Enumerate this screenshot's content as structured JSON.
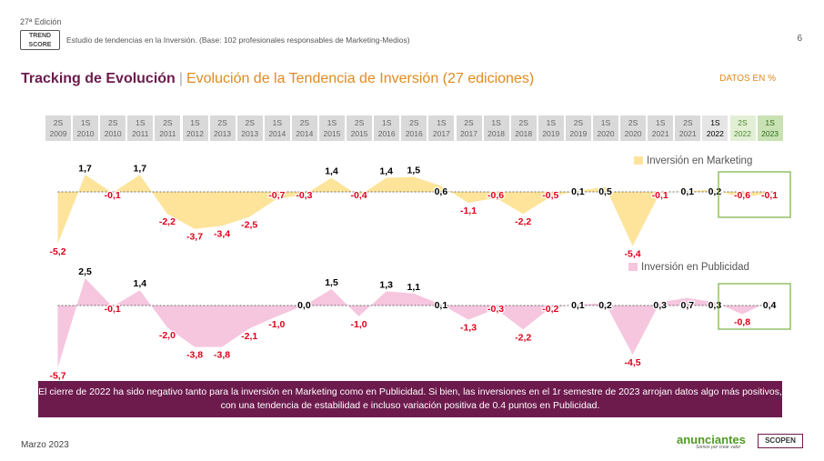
{
  "header": {
    "edition": "27ª Edición",
    "logo_line1": "TREND",
    "logo_line2": "SCORE",
    "study": "Estudio de tendencias en la Inversión. (Base: 102 profesionales responsables de Marketing-Medios)",
    "page_number": "6"
  },
  "title": {
    "main": "Tracking de Evolución",
    "separator": "|",
    "subtitle": "Evolución de la Tendencia de Inversión (27 ediciones)",
    "units": "DATOS EN %"
  },
  "chart_data": {
    "type": "area",
    "periods": [
      {
        "half": "2S",
        "year": "2009"
      },
      {
        "half": "1S",
        "year": "2010"
      },
      {
        "half": "2S",
        "year": "2010"
      },
      {
        "half": "1S",
        "year": "2011"
      },
      {
        "half": "2S",
        "year": "2011"
      },
      {
        "half": "1S",
        "year": "2012"
      },
      {
        "half": "2S",
        "year": "2013"
      },
      {
        "half": "2S",
        "year": "2013"
      },
      {
        "half": "1S",
        "year": "2014"
      },
      {
        "half": "2S",
        "year": "2014"
      },
      {
        "half": "1S",
        "year": "2015"
      },
      {
        "half": "2S",
        "year": "2015"
      },
      {
        "half": "1S",
        "year": "2016"
      },
      {
        "half": "2S",
        "year": "2016"
      },
      {
        "half": "1S",
        "year": "2017"
      },
      {
        "half": "2S",
        "year": "2017"
      },
      {
        "half": "1S",
        "year": "2018"
      },
      {
        "half": "2S",
        "year": "2018"
      },
      {
        "half": "1S",
        "year": "2019"
      },
      {
        "half": "2S",
        "year": "2019"
      },
      {
        "half": "1S",
        "year": "2020"
      },
      {
        "half": "2S",
        "year": "2020"
      },
      {
        "half": "1S",
        "year": "2021"
      },
      {
        "half": "2S",
        "year": "2021"
      },
      {
        "half": "1S",
        "year": "2022"
      },
      {
        "half": "2S",
        "year": "2022"
      },
      {
        "half": "1S",
        "year": "2023"
      }
    ],
    "series": [
      {
        "name": "Inversión en Marketing",
        "color": "#fde49a",
        "values": [
          -5.2,
          1.7,
          -0.1,
          1.7,
          -2.2,
          -3.7,
          -3.4,
          -2.5,
          -0.7,
          -0.3,
          1.4,
          -0.4,
          1.4,
          1.5,
          0.6,
          -1.1,
          -0.6,
          -2.2,
          -0.5,
          0.1,
          0.5,
          -5.4,
          -0.1,
          0.1,
          0.2,
          -0.6,
          -0.1
        ],
        "labels": [
          "-5,2",
          "1,7",
          "-0,1",
          "1,7",
          "-2,2",
          "-3,7",
          "-3,4",
          "-2,5",
          "-0,7",
          "-0,3",
          "1,4",
          "-0,4",
          "1,4",
          "1,5",
          "0,6",
          "-1,1",
          "-0,6",
          "-2,2",
          "-0,5",
          "0,1",
          "0,5",
          "-5,4",
          "-0,1",
          "0,1",
          "0,2",
          "-0,6",
          "-0,1"
        ]
      },
      {
        "name": "Inversión en Publicidad",
        "color": "#f6c6df",
        "values": [
          -5.7,
          2.5,
          -0.1,
          1.4,
          -2.0,
          -3.8,
          -3.8,
          -2.1,
          -1.0,
          0.0,
          1.5,
          -1.0,
          1.3,
          1.1,
          0.1,
          -1.3,
          -0.3,
          -2.2,
          -0.2,
          0.1,
          0.2,
          -4.5,
          0.3,
          0.7,
          0.3,
          -0.8,
          0.4
        ],
        "labels": [
          "-5,7",
          "2,5",
          "-0,1",
          "1,4",
          "-2,0",
          "-3,8",
          "-3,8",
          "-2,1",
          "-1,0",
          "0,0",
          "1,5",
          "-1,0",
          "1,3",
          "1,1",
          "0,1",
          "-1,3",
          "-0,3",
          "-2,2",
          "-0,2",
          "0,1",
          "0,2",
          "-4,5",
          "0,3",
          "0,7",
          "0,3",
          "-0,8",
          "0,4"
        ]
      }
    ],
    "positive_label_color": "#000000",
    "negative_label_color": "#e0001b",
    "highlight_color": "#78b144"
  },
  "banner": {
    "text": "El cierre de 2022 ha sido negativo tanto para la inversión en Marketing como en Publicidad. Si bien, las inversiones en el 1r semestre de 2023 arrojan datos algo más positivos, con una tendencia de estabilidad e incluso variación positiva de 0.4 puntos en Publicidad."
  },
  "footer": {
    "date": "Marzo 2023",
    "brand": "anunciantes",
    "brand_tagline": "Somos por crear valor",
    "partner": "SCOPEN"
  }
}
